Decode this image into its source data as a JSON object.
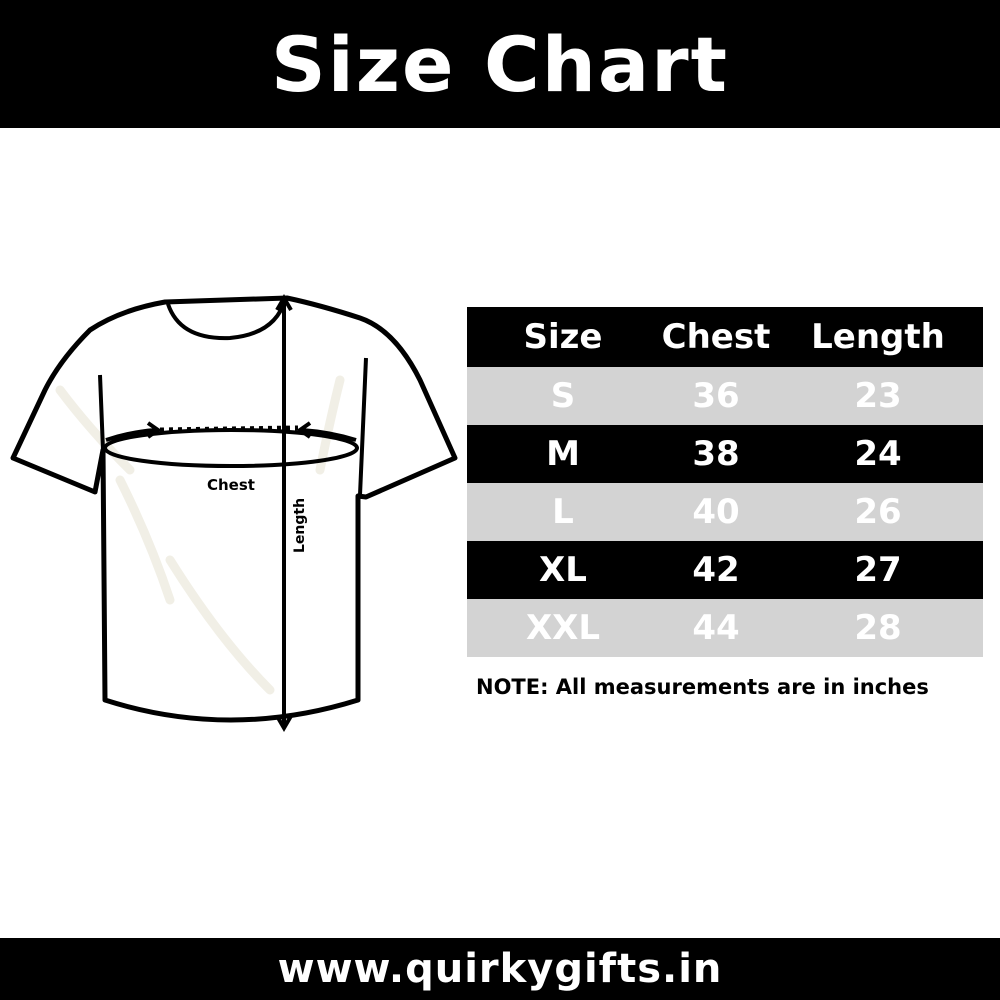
{
  "header": {
    "title": "Size Chart"
  },
  "diagram": {
    "chest_label": "Chest",
    "length_label": "Length",
    "fabric_shade_color": "#f1efe6"
  },
  "table": {
    "columns": [
      "Size",
      "Chest",
      "Length"
    ],
    "rows": [
      {
        "size": "S",
        "chest": "36",
        "length": "23",
        "style": "light"
      },
      {
        "size": "M",
        "chest": "38",
        "length": "24",
        "style": "dark"
      },
      {
        "size": "L",
        "chest": "40",
        "length": "26",
        "style": "light"
      },
      {
        "size": "XL",
        "chest": "42",
        "length": "27",
        "style": "dark"
      },
      {
        "size": "XXL",
        "chest": "44",
        "length": "28",
        "style": "light"
      }
    ],
    "dark_row_color": "#000000",
    "light_row_color": "#d3d3d3"
  },
  "note": "NOTE: All measurements are in inches",
  "footer": {
    "website": "www.quirkygifts.in"
  }
}
